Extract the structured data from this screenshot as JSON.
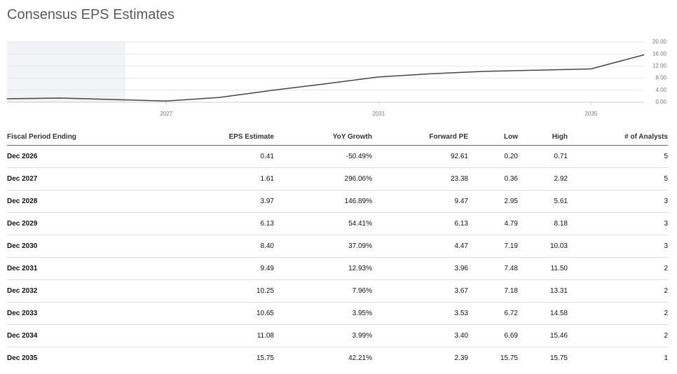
{
  "header": {
    "title": "Consensus EPS Estimates"
  },
  "chart_data": {
    "type": "line",
    "x": [
      2024,
      2025,
      2026,
      2027,
      2028,
      2029,
      2030,
      2031,
      2032,
      2033,
      2034,
      2035,
      2036
    ],
    "values": [
      1.16,
      1.4,
      0.9,
      0.41,
      1.61,
      3.97,
      6.13,
      8.4,
      9.49,
      10.25,
      10.65,
      11.08,
      15.75
    ],
    "color": "#444444",
    "xlim": [
      2024,
      2036
    ],
    "xticks": [
      2027,
      2031,
      2035
    ],
    "ylim": [
      0,
      20
    ],
    "yticks": [
      {
        "value": 0,
        "label": "0.00"
      },
      {
        "value": 4,
        "label": "4.00"
      },
      {
        "value": 8,
        "label": "8.00"
      },
      {
        "value": 12,
        "label": "12.00"
      },
      {
        "value": 16,
        "label": "16.00"
      },
      {
        "value": 20,
        "label": "20.00"
      }
    ],
    "grid": true
  },
  "table": {
    "columns": [
      "Fiscal Period Ending",
      "EPS Estimate",
      "YoY Growth",
      "Forward PE",
      "Low",
      "High",
      "# of Analysts"
    ],
    "rows": [
      [
        "Dec 2026",
        "0.41",
        "-50.49%",
        "92.61",
        "0.20",
        "0.71",
        "5"
      ],
      [
        "Dec 2027",
        "1.61",
        "296.06%",
        "23.38",
        "0.36",
        "2.92",
        "5"
      ],
      [
        "Dec 2028",
        "3.97",
        "146.89%",
        "9.47",
        "2.95",
        "5.61",
        "3"
      ],
      [
        "Dec 2029",
        "6.13",
        "54.41%",
        "6.13",
        "4.79",
        "8.18",
        "3"
      ],
      [
        "Dec 2030",
        "8.40",
        "37.09%",
        "4.47",
        "7.19",
        "10.03",
        "3"
      ],
      [
        "Dec 2031",
        "9.49",
        "12.93%",
        "3.96",
        "7.48",
        "11.50",
        "2"
      ],
      [
        "Dec 2032",
        "10.25",
        "7.96%",
        "3.67",
        "7.18",
        "13.31",
        "2"
      ],
      [
        "Dec 2033",
        "10.65",
        "3.95%",
        "3.53",
        "6.72",
        "14.58",
        "2"
      ],
      [
        "Dec 2034",
        "11.08",
        "3.99%",
        "3.40",
        "6.69",
        "15.46",
        "2"
      ],
      [
        "Dec 2035",
        "15.75",
        "42.21%",
        "2.39",
        "15.75",
        "15.75",
        "1"
      ]
    ]
  }
}
